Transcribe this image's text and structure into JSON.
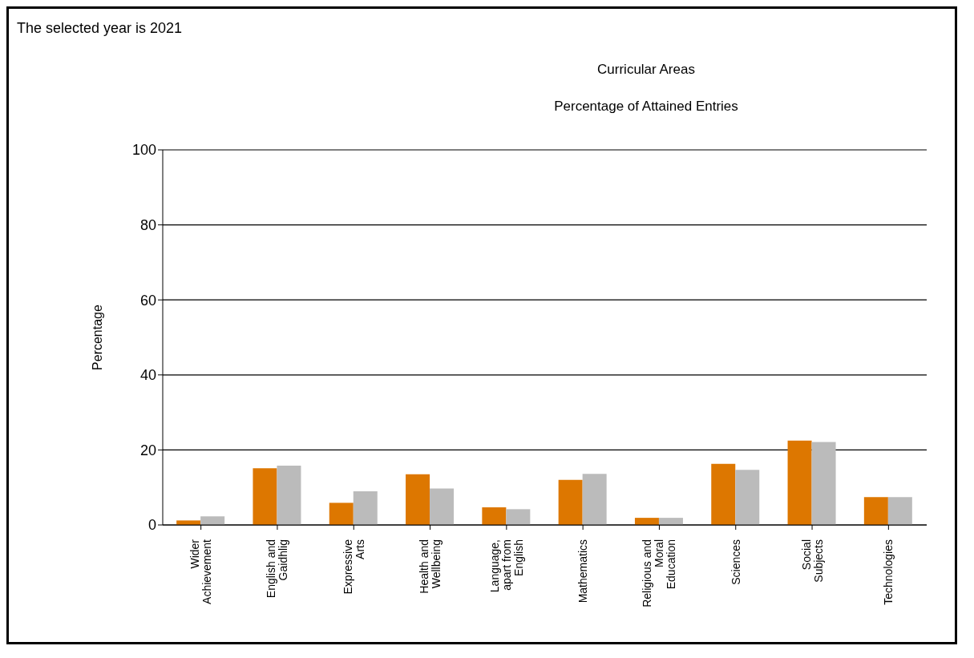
{
  "chart_data": {
    "type": "bar",
    "title": "Curricular Areas",
    "subtitle": "Percentage of Attained Entries",
    "ylabel": "Percentage",
    "annotations": [
      "The selected year is 2021"
    ],
    "categories": [
      "Wider Achievement",
      "English and Gaidhlig",
      "Expressive Arts",
      "Health and Wellbeing",
      "Language, apart from English",
      "Mathematics",
      "Religious and Moral Education",
      "Sciences",
      "Social Subjects",
      "Technologies"
    ],
    "series": [
      {
        "color": "#dd7700",
        "values": [
          1.2,
          15.1,
          5.9,
          13.5,
          4.7,
          12.0,
          1.9,
          16.3,
          22.5,
          7.4
        ]
      },
      {
        "color": "#bbbbbb",
        "values": [
          2.3,
          15.8,
          9.0,
          9.7,
          4.2,
          13.6,
          1.9,
          14.7,
          22.1,
          7.4
        ]
      }
    ],
    "ylim": [
      0,
      100
    ],
    "yticks": [
      0,
      20,
      40,
      60,
      80,
      100
    ],
    "grid": "y",
    "legend": false
  }
}
